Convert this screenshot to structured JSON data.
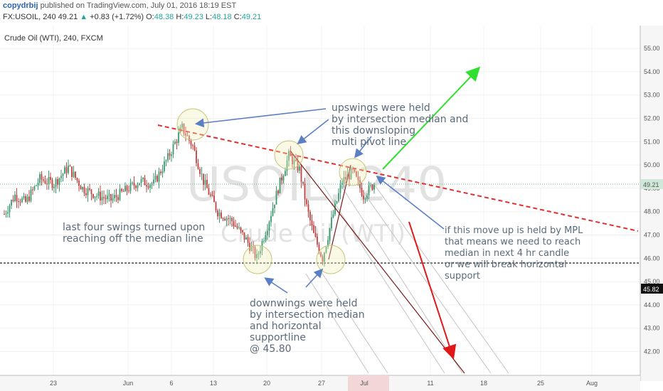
{
  "header": {
    "user": "copydrbij",
    "published": " published on TradingView.com, July 01, 2016 18:19 EST",
    "symbol_line": "FX:USOIL, 240",
    "last": "49.21",
    "change": "+0.83 (+1.72%)",
    "o_label": "O:",
    "o_val": "48.38",
    "h_label": "H:",
    "h_val": "49.23",
    "l_label": "L:",
    "l_val": "48.18",
    "c_label": "C:",
    "c_val": "49.21"
  },
  "chart_data": {
    "type": "candlestick",
    "title": "Crude Oil (WTI), 240, FXCM",
    "watermark_symbol": "USOIL, 240",
    "watermark_name": "Crude Oil (WTI)",
    "x_ticks": [
      "23",
      "Jun",
      "6",
      "13",
      "20",
      "27",
      "Jul",
      "11",
      "18",
      "25",
      "Aug"
    ],
    "y_ticks": [
      42.0,
      43.0,
      44.0,
      45.0,
      46.0,
      47.0,
      48.0,
      49.0,
      50.0,
      51.0,
      52.0,
      53.0,
      54.0,
      55.0
    ],
    "ylim": [
      41.0,
      55.7
    ],
    "last_price_label": "49.21",
    "support_price_label": "45.82",
    "price_path": [
      {
        "bar": 0,
        "price": 47.9
      },
      {
        "bar": 6,
        "price": 48.7
      },
      {
        "bar": 12,
        "price": 48.4
      },
      {
        "bar": 20,
        "price": 49.4
      },
      {
        "bar": 28,
        "price": 49.2
      },
      {
        "bar": 36,
        "price": 49.9
      },
      {
        "bar": 44,
        "price": 49.0
      },
      {
        "bar": 52,
        "price": 48.7
      },
      {
        "bar": 60,
        "price": 48.5
      },
      {
        "bar": 68,
        "price": 48.9
      },
      {
        "bar": 76,
        "price": 49.3
      },
      {
        "bar": 84,
        "price": 49.2
      },
      {
        "bar": 92,
        "price": 50.3
      },
      {
        "bar": 100,
        "price": 51.6
      },
      {
        "bar": 106,
        "price": 50.8
      },
      {
        "bar": 112,
        "price": 49.3
      },
      {
        "bar": 120,
        "price": 48.0
      },
      {
        "bar": 128,
        "price": 47.6
      },
      {
        "bar": 136,
        "price": 46.8
      },
      {
        "bar": 142,
        "price": 46.0
      },
      {
        "bar": 148,
        "price": 47.4
      },
      {
        "bar": 154,
        "price": 49.0
      },
      {
        "bar": 160,
        "price": 50.4
      },
      {
        "bar": 166,
        "price": 49.8
      },
      {
        "bar": 170,
        "price": 48.2
      },
      {
        "bar": 174,
        "price": 47.0
      },
      {
        "bar": 179,
        "price": 46.0
      },
      {
        "bar": 184,
        "price": 47.6
      },
      {
        "bar": 190,
        "price": 49.3
      },
      {
        "bar": 196,
        "price": 49.7
      },
      {
        "bar": 202,
        "price": 48.7
      },
      {
        "bar": 208,
        "price": 49.2
      }
    ],
    "annotations": {
      "upswings": [
        "upswings were held",
        "by intersection median and",
        "this downsloping",
        "multi pivot line"
      ],
      "last_four": [
        "last four swings turned upon",
        "reaching off the median line"
      ],
      "downwings": [
        "downwings were held",
        "by intersection median",
        "and horizontal",
        "supportline",
        "@ 45.80"
      ],
      "mpl": [
        "if this move up is held by MPL",
        "that means we need to reach",
        "median in next 4 hr candle",
        "or we will break horizontal",
        "support"
      ]
    }
  }
}
